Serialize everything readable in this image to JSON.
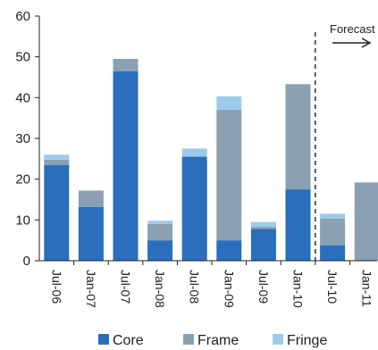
{
  "chart_data": {
    "type": "bar",
    "stacked": true,
    "categories": [
      "Jul-06",
      "Jan-07",
      "Jul-07",
      "Jan-08",
      "Jul-08",
      "Jan-09",
      "Jul-09",
      "Jan-10",
      "Jul-10",
      "Jan-11"
    ],
    "series": [
      {
        "name": "Core",
        "color": "#2a6ebe",
        "values": [
          23.5,
          13.2,
          46.5,
          5.0,
          25.5,
          5.0,
          7.8,
          17.5,
          3.8,
          0
        ]
      },
      {
        "name": "Frame",
        "color": "#8aa1b3",
        "values": [
          1.3,
          4.0,
          3.0,
          4.0,
          0,
          32.0,
          0.5,
          25.8,
          6.5,
          19.2
        ]
      },
      {
        "name": "Fringe",
        "color": "#9dcaea",
        "values": [
          1.2,
          0,
          0,
          0.8,
          2.0,
          3.3,
          1.2,
          0,
          1.2,
          0
        ]
      }
    ],
    "ylim": [
      0,
      60
    ],
    "yticks": [
      0,
      10,
      20,
      30,
      40,
      50,
      60
    ],
    "grid": false,
    "legend_position": "bottom",
    "annotation": {
      "text": "Forecast",
      "arrow": "right",
      "divider_after_category": "Jan-10"
    }
  }
}
